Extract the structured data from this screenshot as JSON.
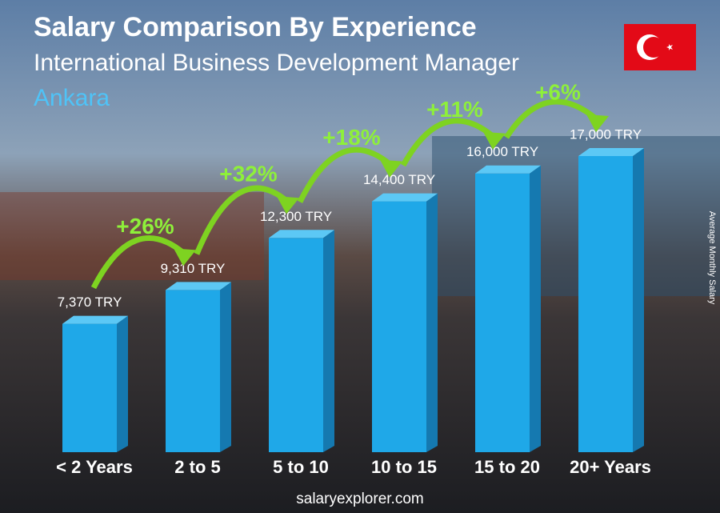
{
  "chart_data": {
    "type": "bar",
    "title": "Salary Comparison By Experience",
    "subtitle": "International Business Development Manager",
    "location": "Ankara",
    "y_axis_label": "Average Monthly Salary",
    "categories": [
      "< 2 Years",
      "2 to 5",
      "5 to 10",
      "10 to 15",
      "15 to 20",
      "20+ Years"
    ],
    "values": [
      7370,
      9310,
      12300,
      14400,
      16000,
      17000
    ],
    "value_labels": [
      "7,370 TRY",
      "9,310 TRY",
      "12,300 TRY",
      "14,400 TRY",
      "16,000 TRY",
      "17,000 TRY"
    ],
    "changes": [
      "+26%",
      "+32%",
      "+18%",
      "+11%",
      "+6%"
    ],
    "color": "#1fa8e8",
    "footer": "salaryexplorer.com"
  }
}
